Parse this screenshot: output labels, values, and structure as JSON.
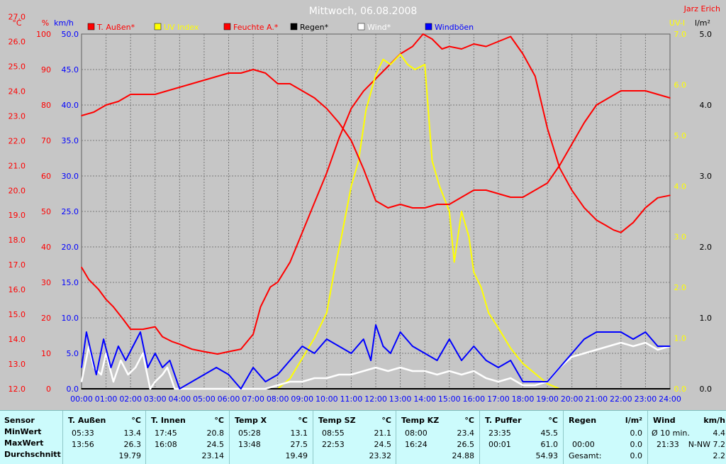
{
  "chart_data": {
    "type": "line",
    "title": "Mittwoch, 06.08.2008",
    "author": "Jarz Erich",
    "axes_left": {
      "celsius": {
        "unit": "°C",
        "ticks": [
          "12.0",
          "13.0",
          "14.0",
          "15.0",
          "16.0",
          "17.0",
          "18.0",
          "19.0",
          "20.0",
          "21.0",
          "22.0",
          "23.0",
          "24.0",
          "25.0",
          "26.0",
          "27.0"
        ],
        "ylim": [
          12.0,
          26.3
        ]
      },
      "percent": {
        "unit": "%",
        "ticks": [
          "0",
          "10",
          "20",
          "30",
          "40",
          "50",
          "60",
          "70",
          "80",
          "90",
          "100"
        ],
        "ylim": [
          0,
          100
        ]
      },
      "kmh": {
        "unit": "km/h",
        "ticks": [
          "0.0",
          "5.0",
          "10.0",
          "15.0",
          "20.0",
          "25.0",
          "30.0",
          "35.0",
          "40.0",
          "45.0",
          "50.0"
        ],
        "ylim": [
          0,
          50
        ]
      }
    },
    "axes_right": {
      "uv": {
        "unit": "UV-I",
        "ticks": [
          "0.0",
          "1.0",
          "2.0",
          "3.0",
          "4.0",
          "5.0",
          "6.0",
          "7.0"
        ],
        "ylim": [
          0,
          7
        ]
      },
      "rain": {
        "unit": "l/m²",
        "ticks": [
          "0.0",
          "1.0",
          "2.0",
          "3.0",
          "4.0",
          "5.0"
        ],
        "ylim": [
          0,
          5
        ]
      }
    },
    "x_ticks": [
      "00:00",
      "01:00",
      "02:00",
      "03:00",
      "04:00",
      "05:00",
      "06:00",
      "07:00",
      "08:00",
      "09:00",
      "10:00",
      "11:00",
      "12:00",
      "13:00",
      "14:00",
      "15:00",
      "16:00",
      "17:00",
      "18:00",
      "19:00",
      "20:00",
      "21:00",
      "22:00",
      "23:00",
      "24:00"
    ],
    "grid": true,
    "legend_position": "top",
    "series": [
      {
        "name": "T. Außen*",
        "color": "#ff0000",
        "axis": "celsius",
        "x": [
          0,
          0.3,
          0.7,
          1,
          1.3,
          1.7,
          2,
          2.5,
          3,
          3.3,
          3.7,
          4,
          4.5,
          5,
          5.55,
          6,
          6.5,
          7,
          7.3,
          7.7,
          8,
          8.5,
          9,
          9.5,
          10,
          10.5,
          11,
          11.5,
          12,
          12.5,
          13,
          13.5,
          13.93,
          14.3,
          14.7,
          15,
          15.5,
          16,
          16.5,
          17,
          17.5,
          18,
          18.5,
          19,
          19.5,
          20,
          20.5,
          21,
          21.36,
          21.7,
          22,
          22.5,
          23,
          23.5,
          24
        ],
        "values": [
          16.9,
          16.4,
          16.0,
          15.6,
          15.3,
          14.8,
          14.4,
          14.4,
          14.5,
          14.1,
          13.9,
          13.8,
          13.6,
          13.5,
          13.4,
          13.5,
          13.6,
          14.2,
          15.3,
          16.1,
          16.3,
          17.1,
          18.3,
          19.5,
          20.7,
          22.1,
          23.3,
          24.0,
          24.5,
          25.0,
          25.5,
          25.8,
          26.3,
          26.1,
          25.7,
          25.8,
          25.7,
          25.9,
          25.8,
          26.0,
          26.2,
          25.5,
          24.6,
          22.5,
          20.9,
          20.0,
          19.3,
          18.8,
          18.6,
          18.4,
          18.3,
          18.7,
          19.3,
          19.7,
          19.8
        ]
      },
      {
        "name": "UV Index",
        "color": "#ffff00",
        "axis": "uv",
        "x": [
          0,
          8,
          8.5,
          9,
          9.5,
          10,
          10.3,
          10.6,
          11,
          11.3,
          11.6,
          12,
          12.3,
          12.6,
          13,
          13.3,
          13.6,
          14,
          14.3,
          14.6,
          15,
          15.2,
          15.5,
          15.8,
          16,
          16.3,
          16.6,
          17,
          17.5,
          18,
          18.5,
          19,
          19.5,
          20,
          24
        ],
        "values": [
          0,
          0,
          0.2,
          0.6,
          1.0,
          1.5,
          2.3,
          3.0,
          4.0,
          4.5,
          5.5,
          6.2,
          6.5,
          6.4,
          6.6,
          6.4,
          6.3,
          6.4,
          4.5,
          4.0,
          3.5,
          2.5,
          3.5,
          3.0,
          2.3,
          2.0,
          1.5,
          1.2,
          0.8,
          0.5,
          0.3,
          0.1,
          0,
          0,
          0
        ]
      },
      {
        "name": "Feuchte A.*",
        "color": "#ff0000",
        "axis": "percent",
        "x": [
          0,
          0.5,
          1,
          1.5,
          2,
          2.5,
          3,
          3.5,
          4,
          4.5,
          5,
          5.5,
          6,
          6.5,
          7,
          7.5,
          8,
          8.5,
          9,
          9.5,
          10,
          10.5,
          11,
          11.5,
          12,
          12.5,
          13,
          13.5,
          14,
          14.5,
          15,
          15.5,
          16,
          16.5,
          17,
          17.5,
          18,
          18.5,
          19,
          19.5,
          20,
          20.5,
          21,
          21.5,
          22,
          22.5,
          23,
          23.5,
          24
        ],
        "values": [
          77,
          78,
          80,
          81,
          83,
          83,
          83,
          84,
          85,
          86,
          87,
          88,
          89,
          89,
          90,
          89,
          86,
          86,
          84,
          82,
          79,
          75,
          70,
          62,
          53,
          51,
          52,
          51,
          51,
          52,
          52,
          54,
          56,
          56,
          55,
          54,
          54,
          56,
          58,
          63,
          69,
          75,
          80,
          82,
          84,
          84,
          84,
          83,
          82
        ]
      },
      {
        "name": "Regen*",
        "color": "#000000",
        "axis": "rain",
        "x": [
          0,
          24
        ],
        "values": [
          0,
          0
        ]
      },
      {
        "name": "Wind*",
        "color": "#ffffff",
        "axis": "kmh",
        "x": [
          0,
          0.3,
          0.5,
          0.8,
          1,
          1.3,
          1.6,
          1.9,
          2.2,
          2.5,
          2.8,
          3,
          3.3,
          3.5,
          3.8,
          4,
          5,
          6,
          7,
          7.5,
          8,
          8.5,
          9,
          9.5,
          10,
          10.5,
          11,
          11.5,
          12,
          12.5,
          13,
          13.5,
          14,
          14.5,
          15,
          15.5,
          16,
          16.5,
          17,
          17.5,
          18,
          18.5,
          19,
          19.5,
          20,
          20.5,
          21,
          21.5,
          22,
          22.5,
          23,
          23.5,
          24
        ],
        "values": [
          1,
          6,
          3,
          2,
          5,
          1,
          4,
          2,
          3,
          5,
          0,
          1,
          2,
          3,
          0,
          0,
          0,
          0,
          0,
          0,
          0.5,
          1,
          1,
          1.5,
          1.5,
          2,
          2,
          2.5,
          3,
          2.5,
          3,
          2.5,
          2.5,
          2,
          2.5,
          2,
          2.5,
          1.5,
          1,
          1.5,
          0.5,
          0.5,
          1,
          3,
          4.5,
          5,
          5.5,
          6,
          6.5,
          6,
          6.5,
          5.5,
          6
        ]
      },
      {
        "name": "Windböen",
        "color": "#0000ff",
        "axis": "kmh",
        "x": [
          0,
          0.2,
          0.4,
          0.6,
          0.9,
          1.2,
          1.5,
          1.8,
          2.1,
          2.4,
          2.7,
          3,
          3.3,
          3.6,
          4,
          5,
          5.5,
          6,
          6.5,
          7,
          7.5,
          8,
          8.5,
          9,
          9.5,
          10,
          10.5,
          11,
          11.5,
          11.8,
          12,
          12.3,
          12.6,
          13,
          13.5,
          14,
          14.5,
          15,
          15.5,
          16,
          16.5,
          17,
          17.5,
          18,
          18.5,
          19,
          19.5,
          20,
          20.5,
          21,
          21.5,
          22,
          22.5,
          23,
          23.5,
          24
        ],
        "values": [
          3,
          8,
          5,
          2,
          7,
          3,
          6,
          4,
          6,
          8,
          3,
          5,
          3,
          4,
          0,
          2,
          3,
          2,
          0,
          3,
          1,
          2,
          4,
          6,
          5,
          7,
          6,
          5,
          7,
          4,
          9,
          6,
          5,
          8,
          6,
          5,
          4,
          7,
          4,
          6,
          4,
          3,
          4,
          1,
          1,
          1,
          3,
          5,
          7,
          8,
          8,
          8,
          7,
          8,
          6,
          6
        ]
      }
    ]
  },
  "stats": {
    "row_labels": [
      "Sensor",
      "MinWert",
      "MaxWert",
      "Durchschnitt"
    ],
    "columns": [
      {
        "title": "T. Außen",
        "unit": "°C",
        "min_time": "05:33",
        "min_val": "13.4",
        "max_time": "13:56",
        "max_val": "26.3",
        "avg": "19.79"
      },
      {
        "title": "T. Innen",
        "unit": "°C",
        "min_time": "17:45",
        "min_val": "20.8",
        "max_time": "16:08",
        "max_val": "24.5",
        "avg": "23.14"
      },
      {
        "title": "Temp X",
        "unit": "°C",
        "min_time": "05:28",
        "min_val": "13.1",
        "max_time": "13:48",
        "max_val": "27.5",
        "avg": "19.49"
      },
      {
        "title": "Temp SZ",
        "unit": "°C",
        "min_time": "08:55",
        "min_val": "21.1",
        "max_time": "22:53",
        "max_val": "24.5",
        "avg": "23.32"
      },
      {
        "title": "Temp KZ",
        "unit": "°C",
        "min_time": "08:00",
        "min_val": "23.4",
        "max_time": "16:24",
        "max_val": "26.5",
        "avg": "24.88"
      },
      {
        "title": "T. Puffer",
        "unit": "°C",
        "min_time": "23:35",
        "min_val": "45.5",
        "max_time": "00:01",
        "max_val": "61.0",
        "avg": "54.93"
      }
    ],
    "rain": {
      "title": "Regen",
      "unit": "l/m²",
      "r1_label": "",
      "r1_val": "0.0",
      "r2_label": "00:00",
      "r2_val": "0.0",
      "r3_label": "Gesamt:",
      "r3_val": "0.0"
    },
    "wind": {
      "title": "Wind",
      "unit": "km/h",
      "r1_label": "Ø 10 min.",
      "r1_val": "4.4",
      "r2_label": "21:33",
      "r2_val": "N-NW 7.2",
      "r3_val": "2.2"
    }
  }
}
